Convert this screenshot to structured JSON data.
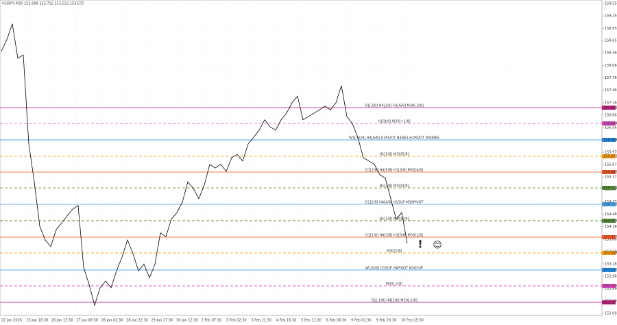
{
  "chart_data": {
    "type": "line",
    "title": "USDJPY,M30  153.688 153.712 153.552 153.575",
    "color": "#000000",
    "grid": true,
    "values": [
      158.4,
      158.68,
      159.06,
      158.23,
      158.31,
      156.17,
      155.26,
      154.19,
      153.86,
      153.7,
      154.11,
      154.27,
      154.44,
      154.6,
      154.69,
      153.2,
      152.79,
      152.29,
      152.71,
      152.87,
      152.71,
      153.12,
      153.45,
      153.86,
      153.53,
      153.12,
      153.28,
      152.95,
      153.28,
      154.03,
      153.94,
      154.36,
      154.52,
      154.77,
      155.26,
      155.1,
      154.85,
      155.18,
      155.68,
      155.59,
      155.68,
      155.51,
      155.84,
      155.92,
      155.76,
      156.17,
      156.33,
      156.5,
      156.75,
      156.58,
      156.5,
      156.75,
      156.91,
      157.16,
      157.32,
      156.75,
      156.83,
      156.91,
      156.99,
      157.08,
      156.99,
      157.16,
      157.57,
      156.83,
      156.66,
      156.33,
      155.84,
      155.76,
      155.68,
      155.43,
      155.35,
      154.85,
      154.36,
      154.52,
      153.78
    ],
    "x_labels": [
      "22 Jan 2026",
      "23 Jan 18:30",
      "26 Jan 13:30",
      "27 Jan 08:30",
      "28 Jan 03:30",
      "28 Jan 22:30",
      "29 Jan 17:30",
      "30 Jan 12:30",
      "2 Feb 07:30",
      "3 Feb 02:30",
      "3 Feb 21:30",
      "4 Feb 16:30",
      "5 Feb 11:30",
      "6 Feb 06:30",
      "9 Feb 01:30",
      "9 Feb 20:30",
      "10 Feb 15:30"
    ],
    "ylim": [
      152.046,
      159.632
    ],
    "yticks": [
      {
        "value": 159.55,
        "label": "159.550"
      },
      {
        "value": 159.25,
        "label": "159.250"
      },
      {
        "value": 158.95,
        "label": "158.950"
      },
      {
        "value": 158.655,
        "label": "158.655"
      },
      {
        "value": 158.36,
        "label": "158.360"
      },
      {
        "value": 158.06,
        "label": "158.060"
      },
      {
        "value": 157.76,
        "label": "157.760"
      },
      {
        "value": 157.46,
        "label": "157.460"
      },
      {
        "value": 157.16,
        "label": "157.160"
      },
      {
        "value": 156.865,
        "label": "156.865"
      },
      {
        "value": 156.565,
        "label": "156.565"
      },
      {
        "value": 156.265,
        "label": "156.265"
      },
      {
        "value": 155.97,
        "label": "155.970"
      },
      {
        "value": 155.675,
        "label": "155.675"
      },
      {
        "value": 155.375,
        "label": "155.375"
      },
      {
        "value": 155.075,
        "label": "155.075"
      },
      {
        "value": 154.775,
        "label": "154.775"
      },
      {
        "value": 154.48,
        "label": "154.480"
      },
      {
        "value": 154.18,
        "label": "154.180"
      },
      {
        "value": 153.88,
        "label": "153.880"
      },
      {
        "value": 153.58,
        "label": "153.580"
      },
      {
        "value": 153.285,
        "label": "153.285"
      },
      {
        "value": 152.985,
        "label": "152.985"
      },
      {
        "value": 152.69,
        "label": "152.690"
      },
      {
        "value": 152.39,
        "label": "152.390"
      },
      {
        "value": 152.095,
        "label": "152.095"
      }
    ],
    "levels": [
      {
        "label": "D1[3/8] H4[1/8] H1[6/8] M30[-2/8]",
        "value": 157.043,
        "color": "#c2187a",
        "dashed": false
      },
      {
        "label": "H1[8/8] M30[+1/8]",
        "value": 156.664,
        "color": "#e040c0",
        "dashed": true
      },
      {
        "label": "W1[+1/8] H4[6/8] D1PIVOT H4RES H1PIVOT M30RES",
        "value": 156.268,
        "color": "#1e88e5",
        "dashed": false
      },
      {
        "label": "H1[5/8] M30[5/8]",
        "value": 155.873,
        "color": "#ff9800",
        "dashed": true
      },
      {
        "label": "D1[2/8] H4[5/8] H1[3/8] M30[4/8]",
        "value": 155.493,
        "color": "#f4511e",
        "dashed": false
      },
      {
        "label": "H1[3/8] M30[3/8]",
        "value": 155.114,
        "color": "#558b2f",
        "dashed": true
      },
      {
        "label": "D1[2/8] H4[4/8] H1SUP M30PIVOT",
        "value": 154.718,
        "color": "#42a5f5",
        "dashed": false
      },
      {
        "label": "H1[1/8] M30[2/8]",
        "value": 154.323,
        "color": "#558b2f",
        "dashed": true
      },
      {
        "label": "D1[1/8] H4[3/8] H1[0/8] M30[1/8]",
        "value": 153.927,
        "color": "#ff5722",
        "dashed": false
      },
      {
        "label": "M30[1/8]",
        "value": 153.548,
        "color": "#ff9800",
        "dashed": true
      },
      {
        "label": "W1[0/8] D1SUP H4PIVOT M30SUP",
        "value": 153.136,
        "color": "#1e88e5",
        "dashed": false
      },
      {
        "label": "M30[-1/8]",
        "value": 152.756,
        "color": "#e040c0",
        "dashed": true
      },
      {
        "label": "D1[-1/8] H4[2/8] M30[-2/8]",
        "value": 152.36,
        "color": "#c2187a",
        "dashed": false
      }
    ],
    "annotations": [
      "!",
      "😊"
    ]
  }
}
